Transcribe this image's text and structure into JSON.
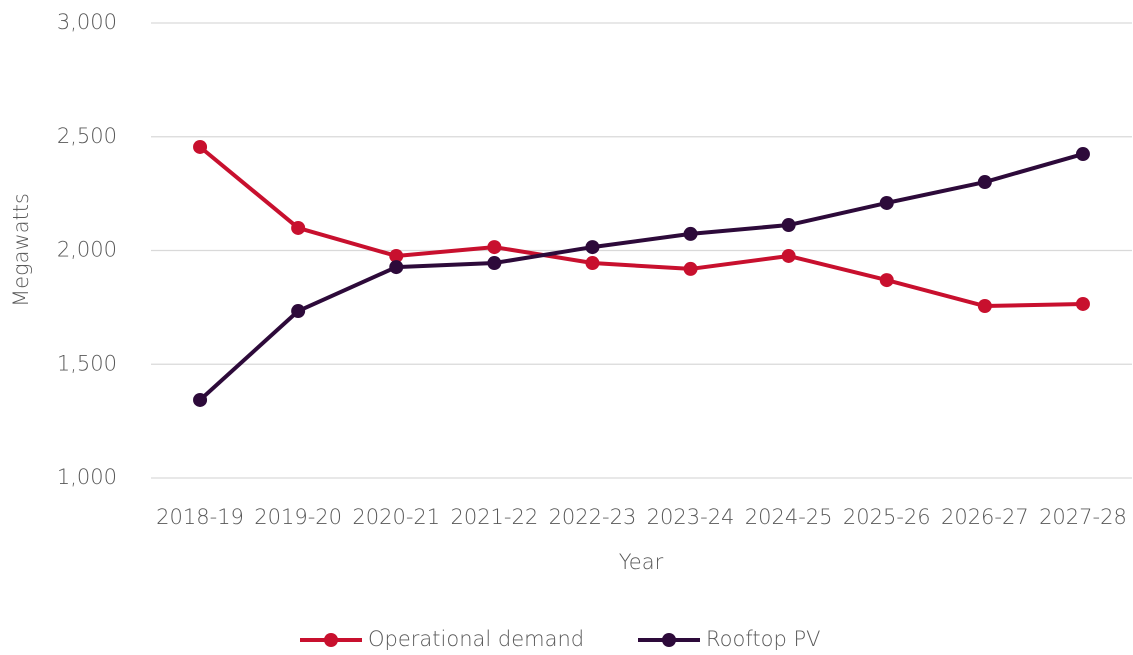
{
  "chart_data": {
    "type": "line",
    "x_label": "Year",
    "y_label": "Megawatts",
    "categories": [
      "2018-19",
      "2019-20",
      "2020-21",
      "2021-22",
      "2022-23",
      "2023-24",
      "2024-25",
      "2025-26",
      "2026-27",
      "2027-28"
    ],
    "series": [
      {
        "name": "Operational demand",
        "color": "#c8102e",
        "values": [
          2455,
          2099,
          1976,
          2015,
          1945,
          1919,
          1976,
          1870,
          1756,
          1765
        ]
      },
      {
        "name": "Rooftop PV",
        "color": "#2d0a3a",
        "values": [
          1343,
          1734,
          1927,
          1945,
          2015,
          2073,
          2112,
          2209,
          2301,
          2424
        ]
      }
    ],
    "ylim": [
      1000,
      3000
    ],
    "yticks": [
      {
        "value": 1000,
        "label": "1,000"
      },
      {
        "value": 1500,
        "label": "1,500"
      },
      {
        "value": 2000,
        "label": "2,000"
      },
      {
        "value": 2500,
        "label": "2,500"
      },
      {
        "value": 3000,
        "label": "3,000"
      }
    ],
    "grid": true,
    "legend": "bottom"
  }
}
